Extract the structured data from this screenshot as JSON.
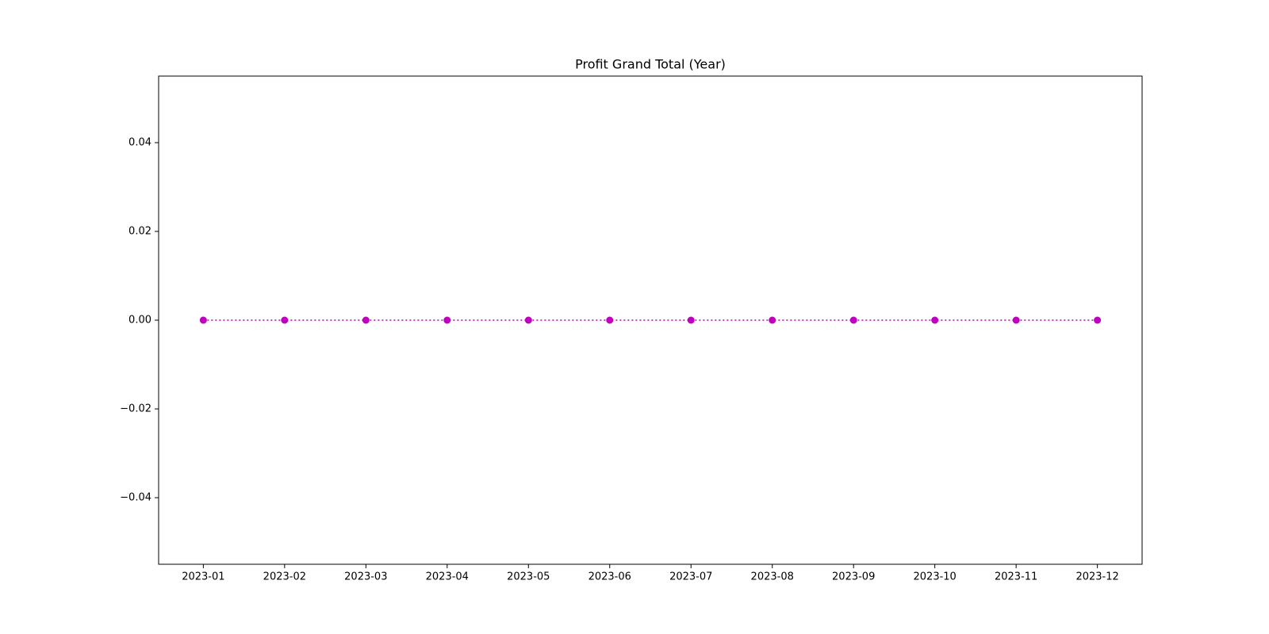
{
  "chart_data": {
    "type": "line",
    "title": "Profit Grand Total (Year)",
    "categories": [
      "2023-01",
      "2023-02",
      "2023-03",
      "2023-04",
      "2023-05",
      "2023-06",
      "2023-07",
      "2023-08",
      "2023-09",
      "2023-10",
      "2023-11",
      "2023-12"
    ],
    "values": [
      0,
      0,
      0,
      0,
      0,
      0,
      0,
      0,
      0,
      0,
      0,
      0
    ],
    "color": "#bf00bf",
    "line_style": "dotted",
    "marker": "circle",
    "ylim": [
      -0.055,
      0.055
    ],
    "yticks": [
      {
        "value": -0.04,
        "label": "−0.04"
      },
      {
        "value": -0.02,
        "label": "−0.02"
      },
      {
        "value": 0,
        "label": "0.00"
      },
      0.02,
      0.04
    ],
    "grid": false
  }
}
